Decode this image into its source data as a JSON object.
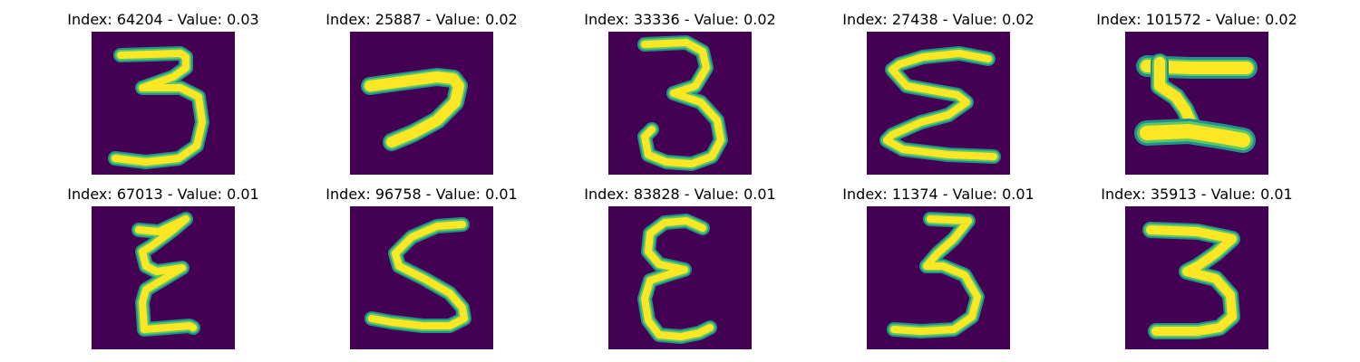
{
  "colors": {
    "background": "#440154",
    "stroke_outer": "#21918c",
    "stroke_mid": "#5ec962",
    "stroke_core": "#fde725"
  },
  "panels": [
    {
      "title": "Index: 64204 - Value: 0.03",
      "icon": "digit-3-image"
    },
    {
      "title": "Index: 25887 - Value: 0.02",
      "icon": "digit-7-image"
    },
    {
      "title": "Index: 33336 - Value: 0.02",
      "icon": "digit-3-image"
    },
    {
      "title": "Index: 27438 - Value: 0.02",
      "icon": "digit-sigma-image"
    },
    {
      "title": "Index: 101572 - Value: 0.02",
      "icon": "digit-5-image"
    },
    {
      "title": "Index: 67013 - Value: 0.01",
      "icon": "digit-z-image"
    },
    {
      "title": "Index: 96758 - Value: 0.01",
      "icon": "digit-5-image"
    },
    {
      "title": "Index: 83828 - Value: 0.01",
      "icon": "digit-reversed-3-image"
    },
    {
      "title": "Index: 11374 - Value: 0.01",
      "icon": "digit-3-image"
    },
    {
      "title": "Index: 35913 - Value: 0.01",
      "icon": "digit-3-image"
    }
  ]
}
